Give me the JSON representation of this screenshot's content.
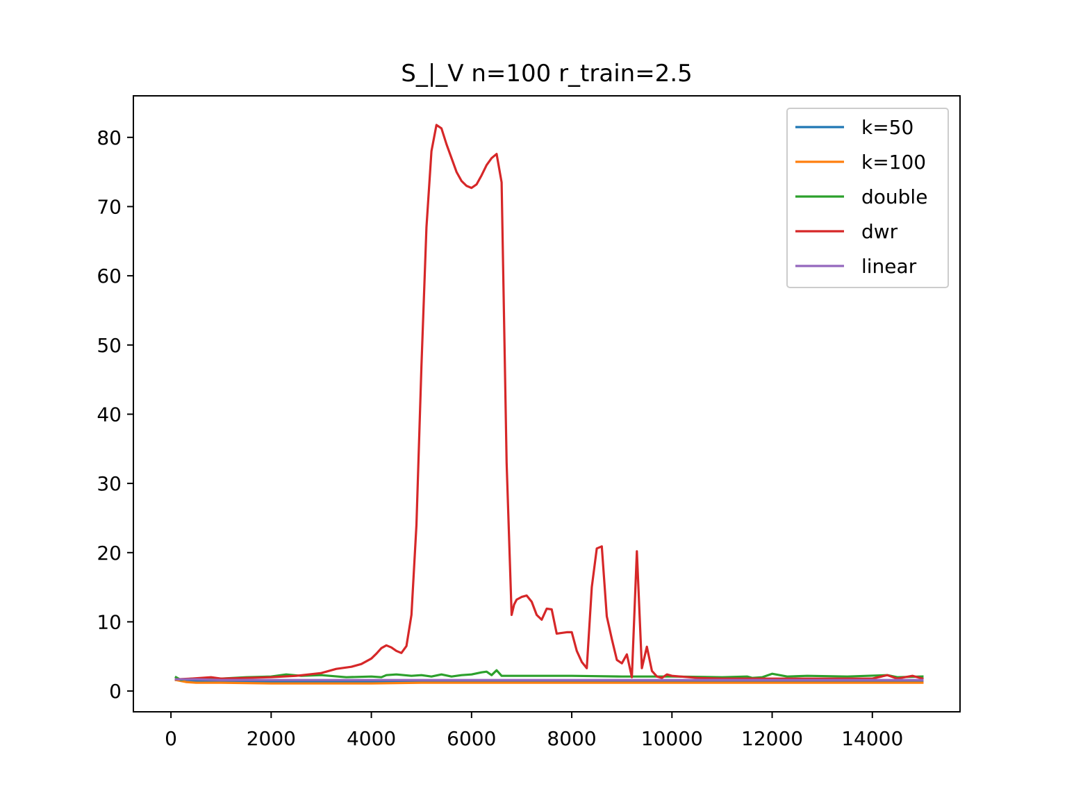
{
  "chart_data": {
    "type": "line",
    "title": "S_|_V n=100 r_train=2.5",
    "xlabel": "",
    "ylabel": "",
    "xlim": [
      -750,
      15750
    ],
    "ylim": [
      -3,
      86
    ],
    "xticks": [
      0,
      2000,
      4000,
      6000,
      8000,
      10000,
      12000,
      14000
    ],
    "yticks": [
      0,
      10,
      20,
      30,
      40,
      50,
      60,
      70,
      80
    ],
    "grid": false,
    "legend_position": "top-right",
    "series": [
      {
        "name": "k=50",
        "color": "#1f77b4",
        "x": [
          100,
          500,
          1000,
          2000,
          3000,
          4000,
          5000,
          6000,
          7000,
          8000,
          9000,
          10000,
          11000,
          12000,
          13000,
          14000,
          15000
        ],
        "y": [
          1.6,
          1.5,
          1.4,
          1.4,
          1.4,
          1.4,
          1.4,
          1.4,
          1.4,
          1.4,
          1.4,
          1.4,
          1.4,
          1.4,
          1.4,
          1.4,
          1.4
        ]
      },
      {
        "name": "k=100",
        "color": "#ff7f0e",
        "x": [
          100,
          300,
          500,
          1000,
          2000,
          3000,
          4000,
          5000,
          6000,
          7000,
          8000,
          9000,
          10000,
          11000,
          12000,
          13000,
          14000,
          15000
        ],
        "y": [
          1.6,
          1.3,
          1.2,
          1.2,
          1.1,
          1.1,
          1.1,
          1.2,
          1.2,
          1.2,
          1.2,
          1.2,
          1.2,
          1.2,
          1.2,
          1.2,
          1.2,
          1.2
        ]
      },
      {
        "name": "double",
        "color": "#2ca02c",
        "x": [
          100,
          200,
          400,
          600,
          800,
          1000,
          1500,
          2000,
          2300,
          2600,
          3000,
          3500,
          4000,
          4200,
          4300,
          4500,
          4800,
          5000,
          5200,
          5400,
          5600,
          5800,
          6000,
          6200,
          6300,
          6400,
          6500,
          6600,
          7000,
          8000,
          9000,
          10000,
          11000,
          11500,
          11600,
          11800,
          12000,
          12300,
          12700,
          13500,
          14300,
          14500,
          15000
        ],
        "y": [
          2.0,
          1.6,
          1.8,
          1.7,
          1.9,
          1.8,
          2.0,
          2.1,
          2.4,
          2.2,
          2.3,
          2.0,
          2.1,
          2.0,
          2.3,
          2.4,
          2.2,
          2.3,
          2.1,
          2.4,
          2.1,
          2.3,
          2.4,
          2.7,
          2.8,
          2.3,
          3.0,
          2.2,
          2.2,
          2.2,
          2.1,
          2.1,
          2.0,
          2.1,
          1.9,
          2.0,
          2.5,
          2.1,
          2.2,
          2.1,
          2.3,
          2.0,
          2.1
        ]
      },
      {
        "name": "dwr",
        "color": "#d62728",
        "x": [
          100,
          400,
          800,
          1000,
          1500,
          2000,
          2500,
          3000,
          3300,
          3600,
          3800,
          4000,
          4100,
          4200,
          4300,
          4400,
          4500,
          4600,
          4700,
          4800,
          4900,
          5000,
          5100,
          5200,
          5300,
          5400,
          5500,
          5600,
          5700,
          5800,
          5900,
          6000,
          6100,
          6200,
          6300,
          6400,
          6500,
          6600,
          6700,
          6800,
          6850,
          6900,
          7000,
          7100,
          7200,
          7300,
          7400,
          7500,
          7600,
          7700,
          7800,
          7900,
          8000,
          8100,
          8200,
          8300,
          8400,
          8500,
          8600,
          8700,
          8800,
          8900,
          9000,
          9100,
          9200,
          9300,
          9400,
          9500,
          9600,
          9700,
          9800,
          9900,
          10000,
          10500,
          11000,
          12000,
          13000,
          13500,
          14000,
          14300,
          14500,
          14800,
          15000
        ],
        "y": [
          1.7,
          1.8,
          2.0,
          1.8,
          1.9,
          2.0,
          2.2,
          2.6,
          3.2,
          3.5,
          3.9,
          4.7,
          5.4,
          6.2,
          6.6,
          6.3,
          5.8,
          5.5,
          6.5,
          11.0,
          24.0,
          47.0,
          67.0,
          78.0,
          81.8,
          81.3,
          79.0,
          77.0,
          75.0,
          73.7,
          73.0,
          72.7,
          73.2,
          74.5,
          76.0,
          77.0,
          77.6,
          73.5,
          33.0,
          11.0,
          12.5,
          13.2,
          13.6,
          13.8,
          12.9,
          11.0,
          10.3,
          11.9,
          11.8,
          8.3,
          8.4,
          8.5,
          8.5,
          5.8,
          4.2,
          3.3,
          15.0,
          20.6,
          20.9,
          10.8,
          7.5,
          4.5,
          4.0,
          5.3,
          2.0,
          20.2,
          3.3,
          6.4,
          2.9,
          2.1,
          1.9,
          2.4,
          2.2,
          1.9,
          1.8,
          1.8,
          1.8,
          1.8,
          1.8,
          2.3,
          1.8,
          2.2,
          1.8
        ]
      },
      {
        "name": "linear",
        "color": "#9467bd",
        "x": [
          100,
          500,
          1000,
          2000,
          3000,
          4000,
          5000,
          6000,
          7000,
          8000,
          9000,
          10000,
          11000,
          12000,
          13000,
          14000,
          15000
        ],
        "y": [
          1.7,
          1.7,
          1.6,
          1.6,
          1.6,
          1.6,
          1.6,
          1.6,
          1.6,
          1.6,
          1.6,
          1.6,
          1.6,
          1.6,
          1.6,
          1.6,
          1.6
        ]
      }
    ]
  }
}
